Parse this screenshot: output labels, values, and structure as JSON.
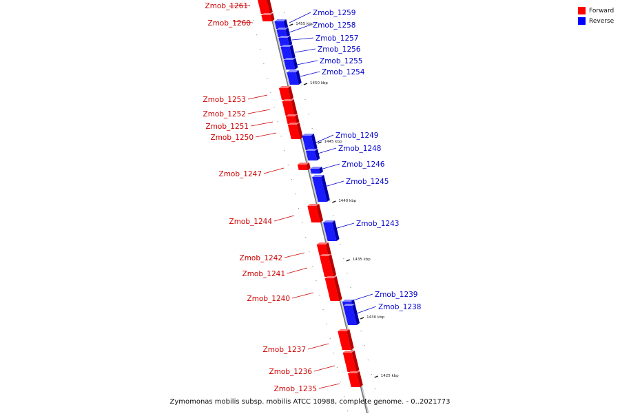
{
  "title": "Zymomonas mobilis subsp. mobilis ATCC 10988, complete genome. - 0..2021773",
  "legend": [
    {
      "label": "Forward",
      "color": "#ff0000"
    },
    {
      "label": "Reverse",
      "color": "#0000ff"
    }
  ],
  "colors": {
    "forward": "#ff0000",
    "reverse": "#1a1aff",
    "forward_label": "#cc0000",
    "reverse_label": "#0000cc",
    "axis": "#777777"
  },
  "scale_marks": [
    {
      "label": "1455 kbp",
      "kbp": 1455
    },
    {
      "label": "1450 kbp",
      "kbp": 1450
    },
    {
      "label": "1445 kbp",
      "kbp": 1445
    },
    {
      "label": "1440 kbp",
      "kbp": 1440
    },
    {
      "label": "1435 kbp",
      "kbp": 1435
    },
    {
      "label": "1430 kbp",
      "kbp": 1430
    },
    {
      "label": "1425 kbp",
      "kbp": 1425
    }
  ],
  "genes": [
    {
      "name": "Zmob_1261",
      "strand": "forward"
    },
    {
      "name": "Zmob_1260",
      "strand": "forward"
    },
    {
      "name": "Zmob_1259",
      "strand": "reverse"
    },
    {
      "name": "Zmob_1258",
      "strand": "reverse"
    },
    {
      "name": "Zmob_1257",
      "strand": "reverse"
    },
    {
      "name": "Zmob_1256",
      "strand": "reverse"
    },
    {
      "name": "Zmob_1255",
      "strand": "reverse"
    },
    {
      "name": "Zmob_1254",
      "strand": "reverse"
    },
    {
      "name": "Zmob_1253",
      "strand": "forward"
    },
    {
      "name": "Zmob_1252",
      "strand": "forward"
    },
    {
      "name": "Zmob_1251",
      "strand": "forward"
    },
    {
      "name": "Zmob_1250",
      "strand": "forward"
    },
    {
      "name": "Zmob_1249",
      "strand": "reverse"
    },
    {
      "name": "Zmob_1248",
      "strand": "reverse"
    },
    {
      "name": "Zmob_1247",
      "strand": "forward"
    },
    {
      "name": "Zmob_1246",
      "strand": "reverse"
    },
    {
      "name": "Zmob_1245",
      "strand": "reverse"
    },
    {
      "name": "Zmob_1244",
      "strand": "forward"
    },
    {
      "name": "Zmob_1243",
      "strand": "reverse"
    },
    {
      "name": "Zmob_1242",
      "strand": "forward"
    },
    {
      "name": "Zmob_1241",
      "strand": "forward"
    },
    {
      "name": "Zmob_1240",
      "strand": "forward"
    },
    {
      "name": "Zmob_1239",
      "strand": "reverse"
    },
    {
      "name": "Zmob_1238",
      "strand": "reverse"
    },
    {
      "name": "Zmob_1237",
      "strand": "forward"
    },
    {
      "name": "Zmob_1236",
      "strand": "forward"
    },
    {
      "name": "Zmob_1235",
      "strand": "forward"
    }
  ]
}
